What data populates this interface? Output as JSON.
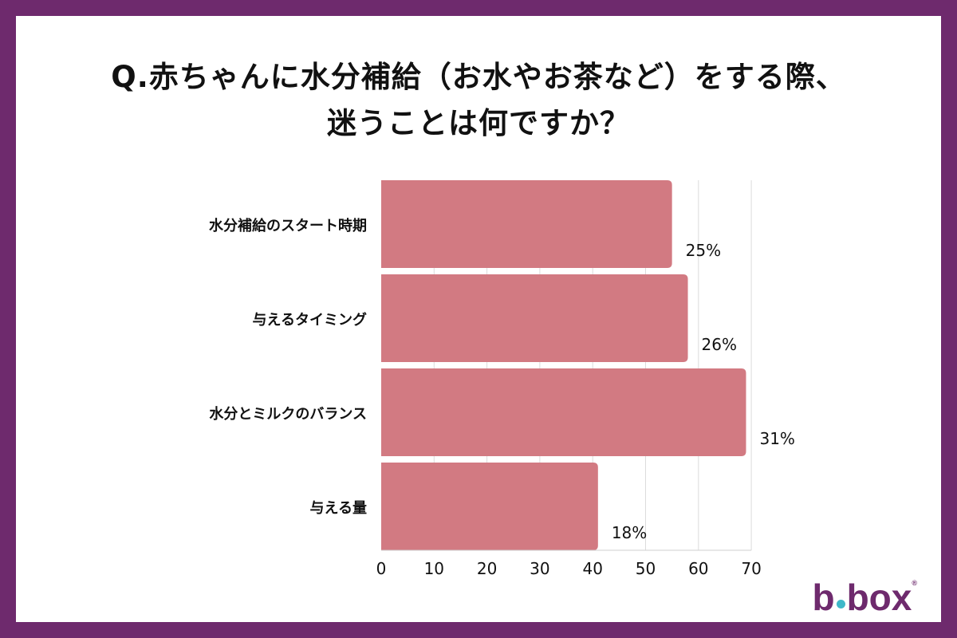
{
  "title_lines": [
    "Q.赤ちゃんに水分補給（お水やお茶など）をする際、",
    "迷うことは何ですか？"
  ],
  "brand": {
    "logo_b": "b",
    "logo_box": "box",
    "purple": "#6e2a6d",
    "teal": "#3fb8c9"
  },
  "chart_data": {
    "type": "bar",
    "orientation": "horizontal",
    "categories": [
      "水分補給のスタート時期",
      "与えるタイミング",
      "水分とミルクのバランス",
      "与える量"
    ],
    "values": [
      55,
      58,
      69,
      41
    ],
    "value_labels": [
      "25%",
      "26%",
      "31%",
      "18%"
    ],
    "xticks": [
      0,
      10,
      20,
      30,
      40,
      50,
      60,
      70
    ],
    "xlim": [
      0,
      70
    ],
    "grid": "vertical",
    "bar_color": "#d27a82"
  }
}
